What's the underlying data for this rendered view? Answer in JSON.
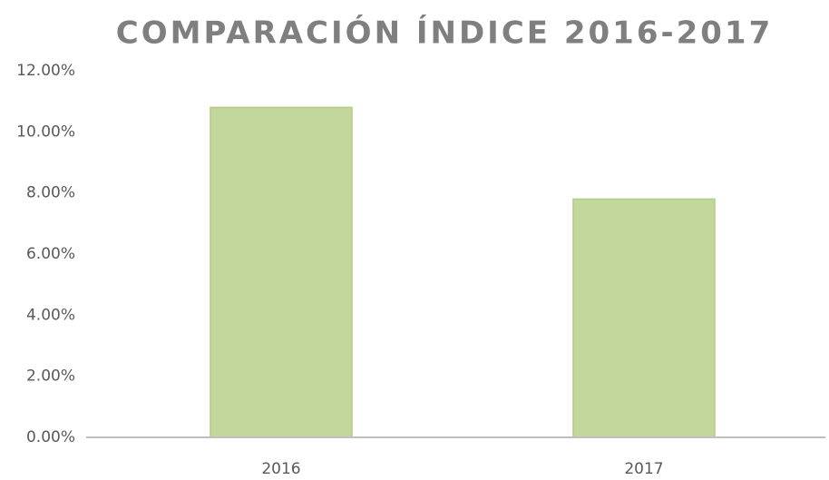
{
  "chart_data": {
    "type": "bar",
    "title": "COMPARACIÓN ÍNDICE 2016-2017",
    "categories": [
      "2016",
      "2017"
    ],
    "values": [
      10.8,
      7.8
    ],
    "color": "#c3d69b",
    "ylim": [
      0,
      12
    ],
    "yticks": [
      {
        "value": 0,
        "label": "0.00%"
      },
      {
        "value": 2,
        "label": "2.00%"
      },
      {
        "value": 4,
        "label": "4.00%"
      },
      {
        "value": 6,
        "label": "6.00%"
      },
      {
        "value": 8,
        "label": "8.00%"
      },
      {
        "value": 10,
        "label": "10.00%"
      },
      {
        "value": 12,
        "label": "12.00%"
      }
    ],
    "grid": false
  }
}
